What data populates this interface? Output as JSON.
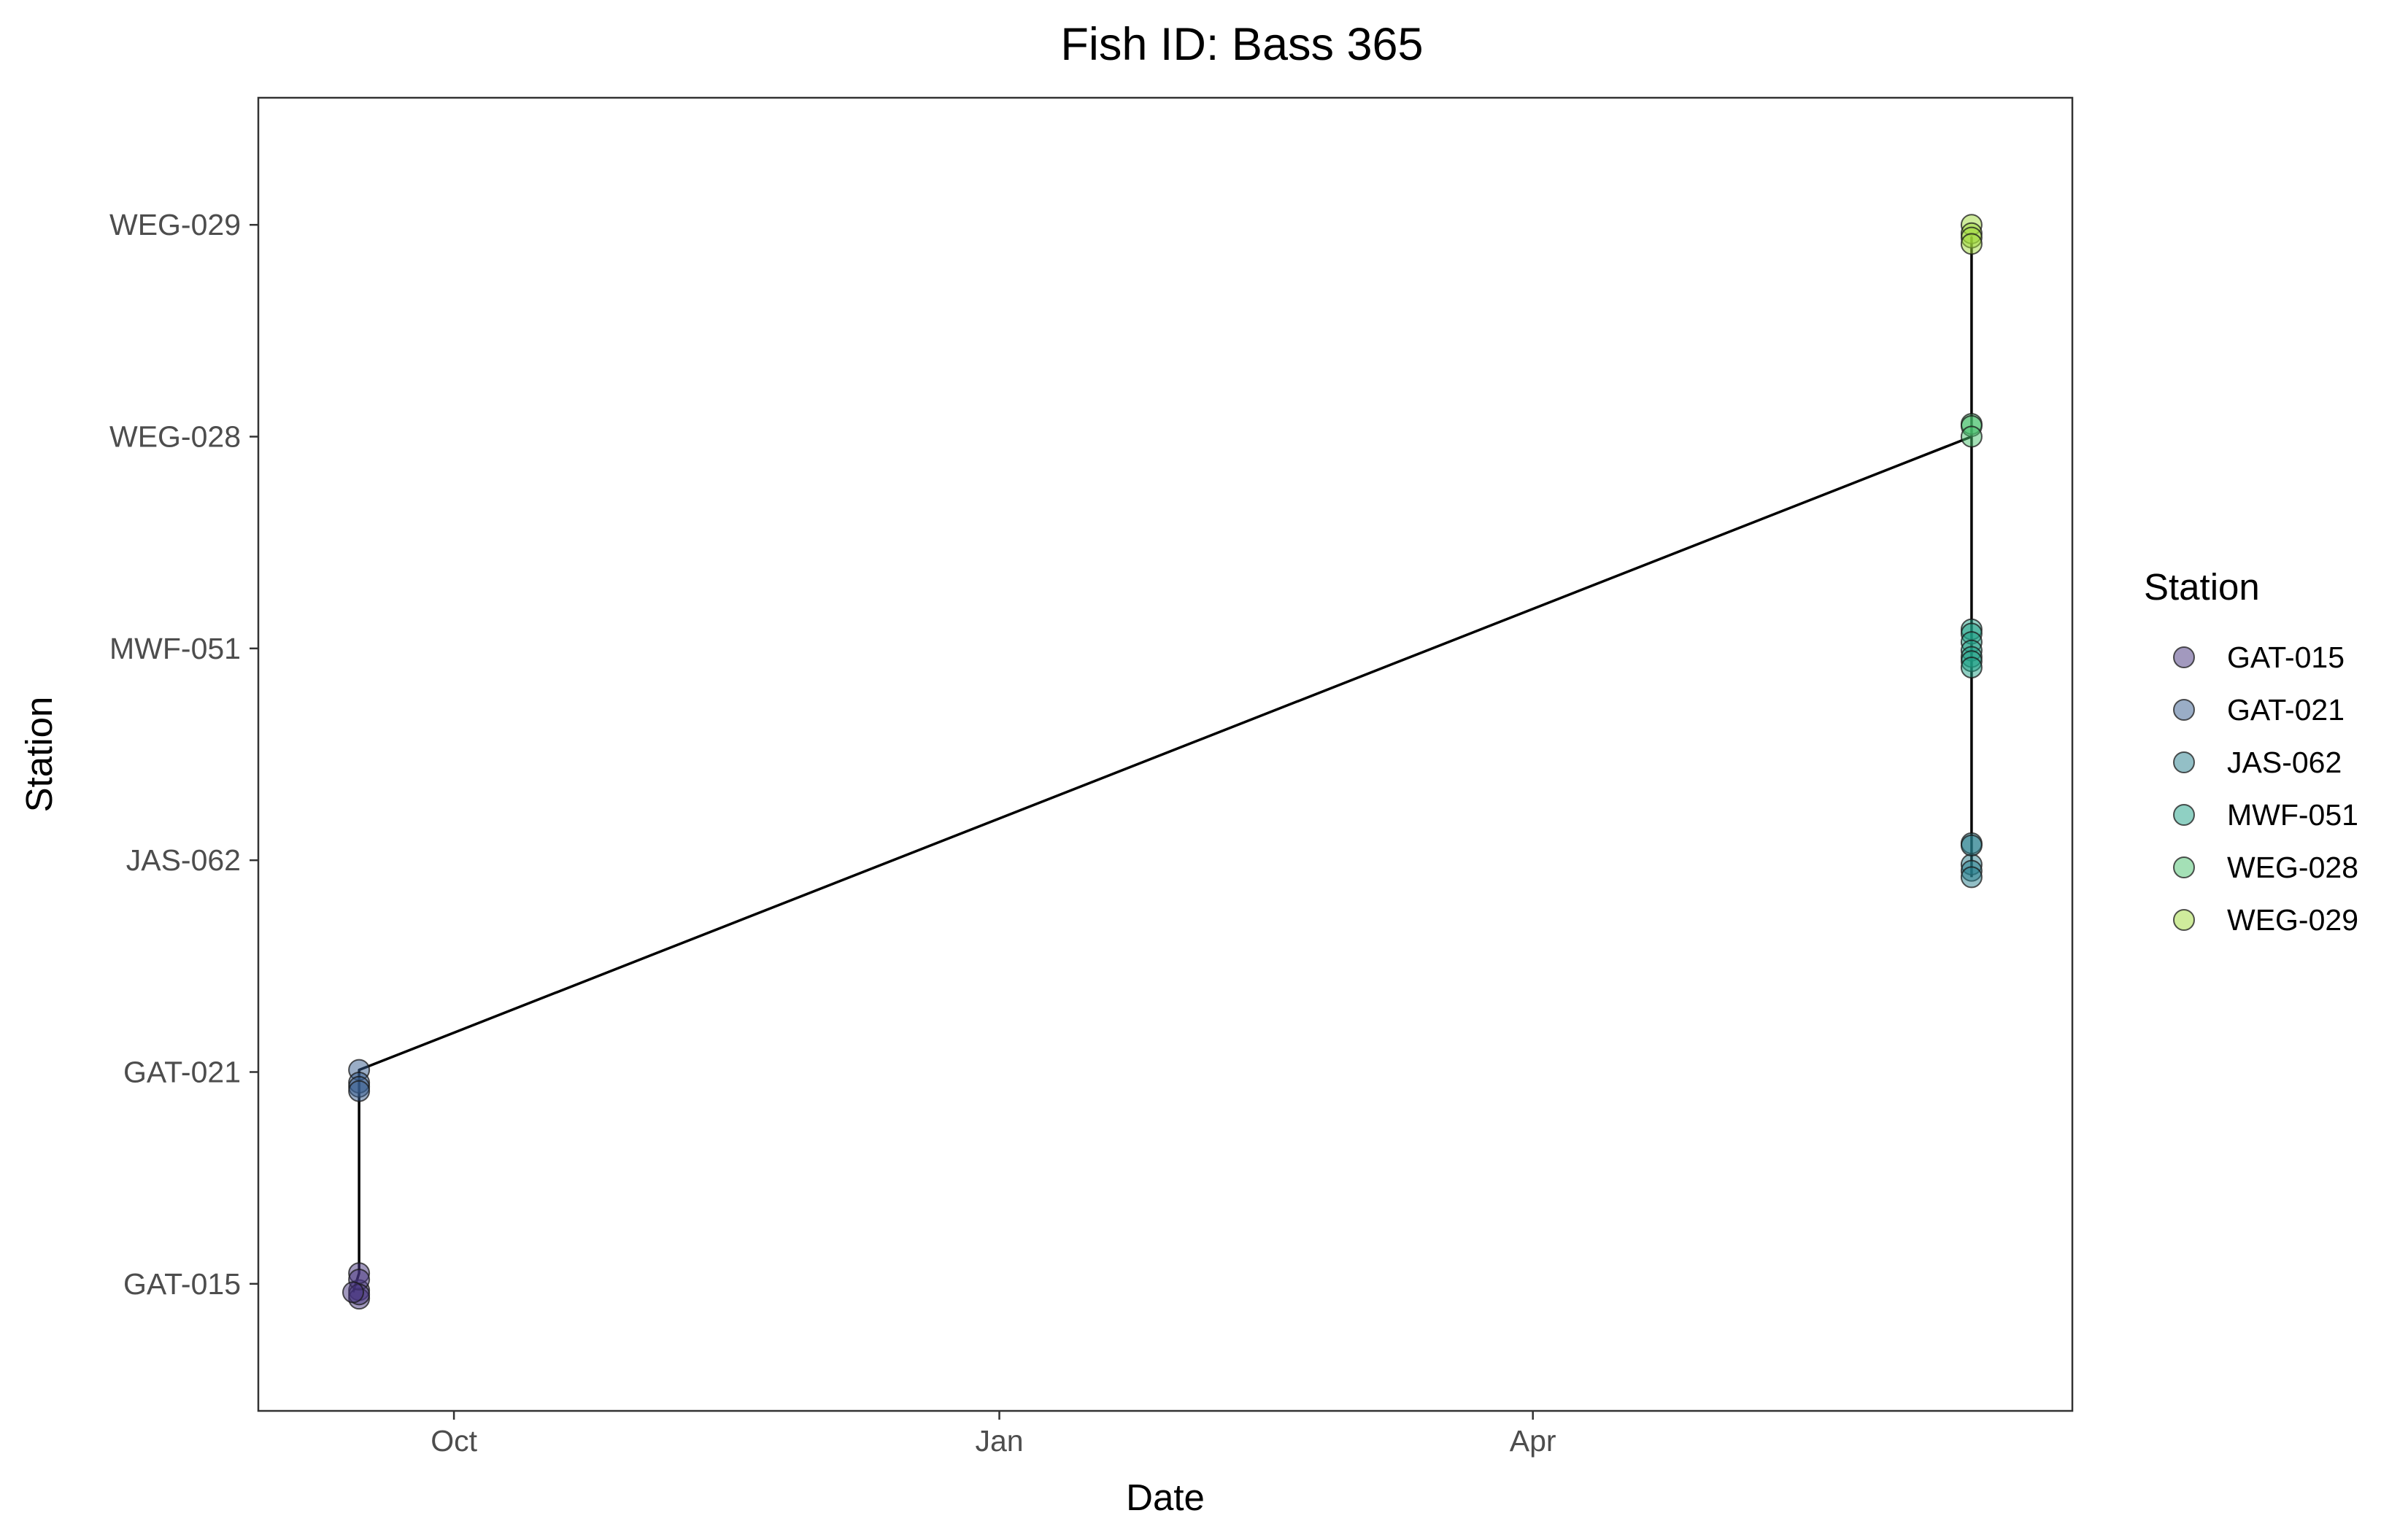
{
  "chart_data": {
    "type": "scatter",
    "title": "Fish ID: Bass 365",
    "xlabel": "Date",
    "ylabel": "Station",
    "x_axis": {
      "scale": "date",
      "range": [
        "2022-08-29",
        "2023-07-01"
      ],
      "ticks": [
        {
          "date": "2022-10-01",
          "label": "Oct"
        },
        {
          "date": "2023-01-01",
          "label": "Jan"
        },
        {
          "date": "2023-04-01",
          "label": "Apr"
        }
      ]
    },
    "y_axis": {
      "scale": "discrete",
      "categories": [
        "GAT-015",
        "GAT-021",
        "JAS-062",
        "MWF-051",
        "WEG-028",
        "WEG-029"
      ],
      "range": [
        0.4,
        6.6
      ]
    },
    "grid": false,
    "legend": {
      "title": "Station",
      "position": "right",
      "entries": [
        {
          "label": "GAT-015",
          "color": "#46337e"
        },
        {
          "label": "GAT-021",
          "color": "#365c8d"
        },
        {
          "label": "JAS-062",
          "color": "#277f8e"
        },
        {
          "label": "MWF-051",
          "color": "#1fa187"
        },
        {
          "label": "WEG-028",
          "color": "#4ac16d"
        },
        {
          "label": "WEG-029",
          "color": "#9fda3a"
        }
      ]
    },
    "series": [
      {
        "name": "GAT-015",
        "color": "#46337e",
        "points": [
          {
            "x": "2022-09-15",
            "y": "GAT-015",
            "jitter": -0.03
          },
          {
            "x": "2022-09-15",
            "y": "GAT-015",
            "jitter": 0.05
          },
          {
            "x": "2022-09-15",
            "y": "GAT-015",
            "jitter": -0.07
          },
          {
            "x": "2022-09-15",
            "y": "GAT-015",
            "jitter": 0.02
          },
          {
            "x": "2022-09-15",
            "y": "GAT-015",
            "jitter": -0.05
          },
          {
            "x": "2022-09-14",
            "y": "GAT-015",
            "jitter": -0.04
          }
        ]
      },
      {
        "name": "GAT-021",
        "color": "#365c8d",
        "points": [
          {
            "x": "2022-09-15",
            "y": "GAT-021",
            "jitter": 0.01
          },
          {
            "x": "2022-09-15",
            "y": "GAT-021",
            "jitter": -0.05
          },
          {
            "x": "2022-09-15",
            "y": "GAT-021",
            "jitter": -0.07
          },
          {
            "x": "2022-09-15",
            "y": "GAT-021",
            "jitter": -0.09
          }
        ]
      },
      {
        "name": "JAS-062",
        "color": "#277f8e",
        "points": [
          {
            "x": "2023-06-14",
            "y": "JAS-062",
            "jitter": 0.08
          },
          {
            "x": "2023-06-14",
            "y": "JAS-062",
            "jitter": -0.02
          },
          {
            "x": "2023-06-14",
            "y": "JAS-062",
            "jitter": -0.05
          },
          {
            "x": "2023-06-14",
            "y": "JAS-062",
            "jitter": -0.08
          },
          {
            "x": "2023-06-14",
            "y": "JAS-062",
            "jitter": 0.07
          }
        ]
      },
      {
        "name": "MWF-051",
        "color": "#1fa187",
        "points": [
          {
            "x": "2023-06-14",
            "y": "MWF-051",
            "jitter": 0.09
          },
          {
            "x": "2023-06-14",
            "y": "MWF-051",
            "jitter": 0.07
          },
          {
            "x": "2023-06-14",
            "y": "MWF-051",
            "jitter": 0.03
          },
          {
            "x": "2023-06-14",
            "y": "MWF-051",
            "jitter": -0.01
          },
          {
            "x": "2023-06-14",
            "y": "MWF-051",
            "jitter": -0.04
          },
          {
            "x": "2023-06-14",
            "y": "MWF-051",
            "jitter": -0.06
          },
          {
            "x": "2023-06-14",
            "y": "MWF-051",
            "jitter": -0.09
          }
        ]
      },
      {
        "name": "WEG-028",
        "color": "#4ac16d",
        "points": [
          {
            "x": "2023-06-14",
            "y": "WEG-028",
            "jitter": 0.06
          },
          {
            "x": "2023-06-14",
            "y": "WEG-028",
            "jitter": 0.05
          },
          {
            "x": "2023-06-14",
            "y": "WEG-028",
            "jitter": 0.0
          }
        ]
      },
      {
        "name": "WEG-029",
        "color": "#9fda3a",
        "points": [
          {
            "x": "2023-06-14",
            "y": "WEG-029",
            "jitter": 0.0
          },
          {
            "x": "2023-06-14",
            "y": "WEG-029",
            "jitter": -0.04
          },
          {
            "x": "2023-06-14",
            "y": "WEG-029",
            "jitter": -0.06
          },
          {
            "x": "2023-06-14",
            "y": "WEG-029",
            "jitter": -0.09
          }
        ]
      }
    ],
    "path": {
      "color": "#000000",
      "points": [
        {
          "x": "2022-09-14",
          "y": "GAT-015",
          "jitter": -0.04
        },
        {
          "x": "2022-09-15",
          "y": "GAT-015",
          "jitter": 0.05
        },
        {
          "x": "2022-09-15",
          "y": "GAT-021",
          "jitter": 0.01
        },
        {
          "x": "2023-06-14",
          "y": "WEG-028",
          "jitter": 0.0
        },
        {
          "x": "2023-06-14",
          "y": "WEG-029",
          "jitter": -0.06
        },
        {
          "x": "2023-06-14",
          "y": "JAS-062",
          "jitter": -0.08
        }
      ]
    }
  }
}
